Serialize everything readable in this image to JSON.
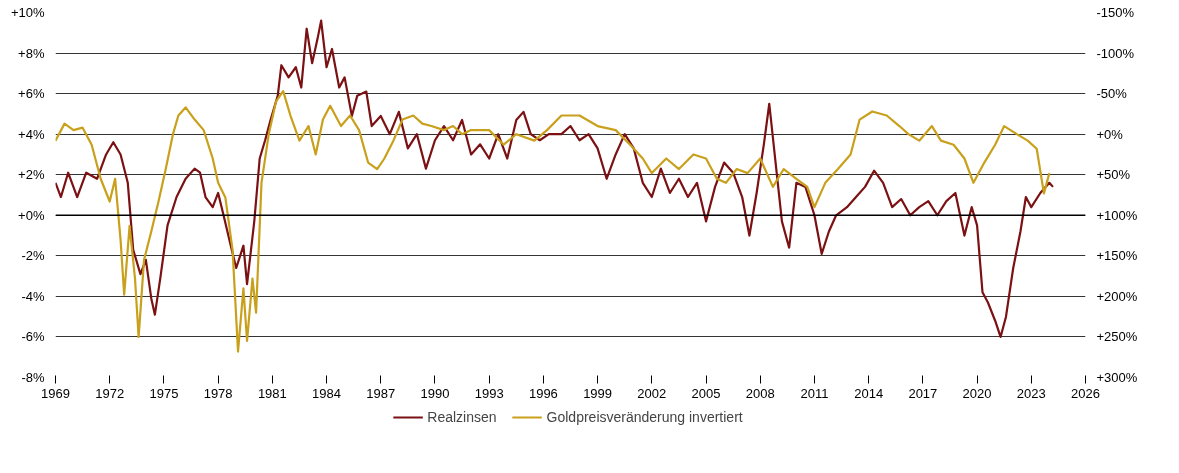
{
  "chart_data": {
    "type": "line",
    "xlim": [
      1969,
      2026
    ],
    "xticks": [
      1969,
      1972,
      1975,
      1978,
      1981,
      1984,
      1987,
      1990,
      1993,
      1996,
      1999,
      2002,
      2005,
      2008,
      2011,
      2014,
      2017,
      2020,
      2023,
      2026
    ],
    "ylim": [
      -8,
      10
    ],
    "yticks": [
      {
        "value": 10,
        "label": "+10%"
      },
      {
        "value": 8,
        "label": "+8%"
      },
      {
        "value": 6,
        "label": "+6%"
      },
      {
        "value": 4,
        "label": "+4%"
      },
      {
        "value": 2,
        "label": "+2%"
      },
      {
        "value": 0,
        "label": "+0%"
      },
      {
        "value": -2,
        "label": "-2%"
      },
      {
        "value": -4,
        "label": "-4%"
      },
      {
        "value": -6,
        "label": "-6%"
      },
      {
        "value": -8,
        "label": "-8%"
      }
    ],
    "y2lim": [
      300,
      -150
    ],
    "y2ticks": [
      {
        "value": -150,
        "label": "-150%"
      },
      {
        "value": -100,
        "label": "-100%"
      },
      {
        "value": -50,
        "label": "-50%"
      },
      {
        "value": 0,
        "label": "+0%"
      },
      {
        "value": 50,
        "label": "+50%"
      },
      {
        "value": 100,
        "label": "+100%"
      },
      {
        "value": 150,
        "label": "+150%"
      },
      {
        "value": 200,
        "label": "+200%"
      },
      {
        "value": 250,
        "label": "+250%"
      },
      {
        "value": 300,
        "label": "+300%"
      }
    ],
    "grid": "y",
    "legend": "bottom",
    "line_style": "solid",
    "marker": "none",
    "ref_lines": [
      {
        "axis": "y",
        "value": 0,
        "color": "#000000"
      }
    ],
    "series": [
      {
        "name": "Realzinsen",
        "color": "#7b1113",
        "x": [
          1969.0,
          1969.3,
          1969.7,
          1970.2,
          1970.7,
          1971.3,
          1971.8,
          1972.2,
          1972.6,
          1973.0,
          1973.3,
          1973.7,
          1974.0,
          1974.3,
          1974.5,
          1974.8,
          1975.2,
          1975.7,
          1976.2,
          1976.7,
          1977.0,
          1977.3,
          1977.7,
          1978.0,
          1978.3,
          1978.7,
          1979.0,
          1979.4,
          1979.6,
          1980.0,
          1980.3,
          1980.6,
          1980.9,
          1981.3,
          1981.5,
          1981.9,
          1982.3,
          1982.6,
          1982.9,
          1983.2,
          1983.5,
          1983.7,
          1984.0,
          1984.3,
          1984.7,
          1985.0,
          1985.4,
          1985.7,
          1986.2,
          1986.5,
          1987.0,
          1987.5,
          1988.0,
          1988.5,
          1989.0,
          1989.5,
          1990.0,
          1990.5,
          1991.0,
          1991.5,
          1992.0,
          1992.5,
          1993.0,
          1993.5,
          1994.0,
          1994.5,
          1994.9,
          1995.3,
          1995.8,
          1996.3,
          1997.0,
          1997.5,
          1998.0,
          1998.5,
          1999.0,
          1999.5,
          2000.0,
          2000.5,
          2001.0,
          2001.5,
          2002.0,
          2002.5,
          2003.0,
          2003.5,
          2004.0,
          2004.5,
          2005.0,
          2005.5,
          2006.0,
          2006.5,
          2007.0,
          2007.4,
          2007.8,
          2008.2,
          2008.5,
          2008.8,
          2009.2,
          2009.6,
          2010.0,
          2010.5,
          2011.0,
          2011.4,
          2011.8,
          2012.2,
          2012.8,
          2013.3,
          2013.8,
          2014.3,
          2014.8,
          2015.3,
          2015.8,
          2016.3,
          2016.8,
          2017.3,
          2017.8,
          2018.3,
          2018.8,
          2019.3,
          2019.7,
          2020.0,
          2020.3,
          2020.6,
          2021.0,
          2021.3,
          2021.6,
          2022.0,
          2022.4,
          2022.7,
          2023.0,
          2023.5,
          2024.0,
          2024.2
        ],
        "values": [
          1.6,
          0.9,
          2.1,
          0.9,
          2.1,
          1.8,
          3.0,
          3.6,
          3.0,
          1.6,
          -1.7,
          -2.9,
          -2.2,
          -4.1,
          -4.9,
          -3.1,
          -0.5,
          0.9,
          1.8,
          2.3,
          2.1,
          0.9,
          0.4,
          1.1,
          0,
          -1.5,
          -2.6,
          -1.5,
          -3.4,
          -0.3,
          2.8,
          3.7,
          4.7,
          5.9,
          7.4,
          6.8,
          7.3,
          6.3,
          9.2,
          7.5,
          8.7,
          9.6,
          7.3,
          8.2,
          6.3,
          6.8,
          4.9,
          5.9,
          6.1,
          4.4,
          4.9,
          4.0,
          5.1,
          3.3,
          4.0,
          2.3,
          3.7,
          4.4,
          3.7,
          4.7,
          3.0,
          3.5,
          2.8,
          4.0,
          2.8,
          4.7,
          5.1,
          4.0,
          3.7,
          4.0,
          4.0,
          4.4,
          3.7,
          4.0,
          3.3,
          1.8,
          3.0,
          4.0,
          3.3,
          1.6,
          0.9,
          2.3,
          1.1,
          1.8,
          0.9,
          1.6,
          -0.3,
          1.4,
          2.6,
          2.1,
          0.9,
          -1.0,
          1.1,
          3.5,
          5.5,
          3.0,
          -0.3,
          -1.6,
          1.6,
          1.4,
          0,
          -1.9,
          -0.8,
          0,
          0.4,
          0.9,
          1.4,
          2.2,
          1.6,
          0.4,
          0.8,
          0,
          0.4,
          0.7,
          0,
          0.7,
          1.1,
          -1.0,
          0.4,
          -0.5,
          -3.8,
          -4.3,
          -5.2,
          -6.0,
          -5.0,
          -2.6,
          -0.8,
          0.9,
          0.4,
          1.1,
          1.6,
          1.4
        ]
      },
      {
        "name": "Goldpreisveränderung invertiert",
        "color": "#c9a01c",
        "axis": "y2",
        "x": [
          1969.0,
          1969.5,
          1970.0,
          1970.5,
          1971.0,
          1971.5,
          1972.0,
          1972.3,
          1972.6,
          1972.8,
          1973.1,
          1973.4,
          1973.6,
          1973.9,
          1974.3,
          1974.7,
          1975.1,
          1975.5,
          1975.8,
          1976.2,
          1976.7,
          1977.2,
          1977.7,
          1978.0,
          1978.4,
          1978.8,
          1979.1,
          1979.4,
          1979.6,
          1979.9,
          1980.1,
          1980.4,
          1980.8,
          1981.2,
          1981.6,
          1982.0,
          1982.5,
          1983.0,
          1983.4,
          1983.8,
          1984.2,
          1984.8,
          1985.3,
          1985.8,
          1986.3,
          1986.8,
          1987.2,
          1987.7,
          1988.2,
          1988.8,
          1989.3,
          1989.8,
          1990.5,
          1991.0,
          1991.5,
          1992.0,
          1993.0,
          1993.8,
          1994.5,
          1995.5,
          1996.2,
          1997.0,
          1998.0,
          1999.0,
          2000.0,
          2000.8,
          2001.5,
          2002.0,
          2002.8,
          2003.5,
          2004.3,
          2005.0,
          2005.6,
          2006.1,
          2006.7,
          2007.3,
          2008.0,
          2008.7,
          2009.3,
          2010.0,
          2010.6,
          2011.0,
          2011.6,
          2012.3,
          2013.0,
          2013.5,
          2014.2,
          2015.0,
          2015.7,
          2016.2,
          2016.8,
          2017.5,
          2018.0,
          2018.7,
          2019.3,
          2019.8,
          2020.4,
          2021.0,
          2021.5,
          2022.2,
          2022.8,
          2023.3,
          2023.7,
          2024.0
        ],
        "values": [
          8,
          -13,
          -5,
          -8,
          13,
          55,
          83,
          55,
          130,
          198,
          113,
          178,
          250,
          155,
          120,
          83,
          43,
          0,
          -23,
          -33,
          -18,
          -5,
          30,
          60,
          78,
          143,
          268,
          190,
          255,
          178,
          220,
          60,
          0,
          -40,
          -53,
          -23,
          8,
          -10,
          25,
          -18,
          -35,
          -10,
          -23,
          -5,
          35,
          43,
          30,
          8,
          -18,
          -23,
          -13,
          -10,
          -5,
          -10,
          0,
          -5,
          -5,
          13,
          0,
          8,
          -5,
          -23,
          -23,
          -10,
          -5,
          13,
          30,
          48,
          30,
          43,
          25,
          30,
          55,
          60,
          43,
          48,
          30,
          65,
          43,
          55,
          65,
          90,
          60,
          43,
          25,
          -18,
          -28,
          -23,
          -10,
          0,
          8,
          -10,
          8,
          13,
          30,
          60,
          35,
          13,
          -10,
          0,
          8,
          18,
          73,
          48
        ]
      }
    ]
  }
}
